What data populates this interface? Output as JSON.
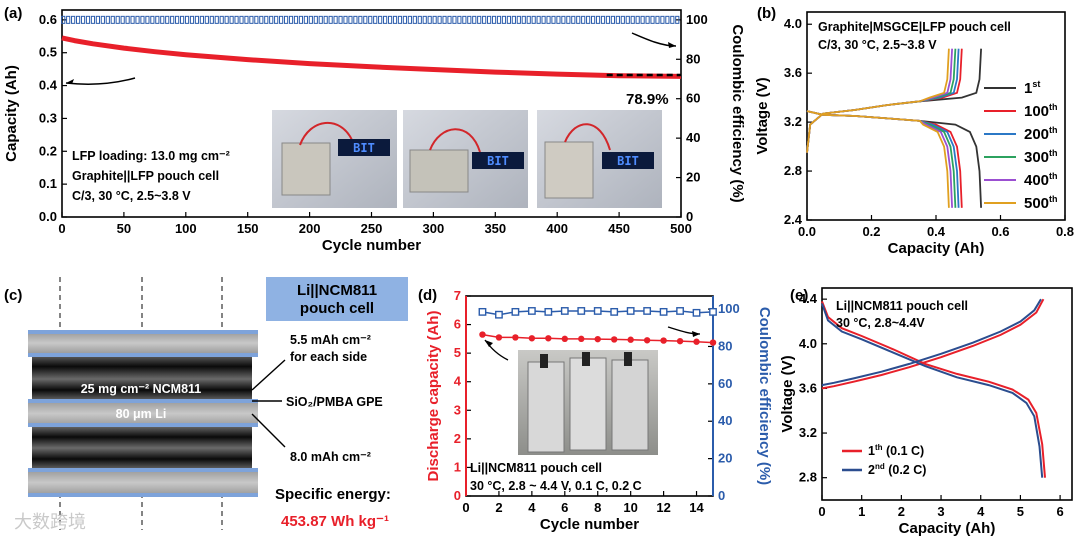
{
  "watermark": "大数跨境",
  "chart_data": [
    {
      "panel": "(a)",
      "type": "line",
      "xlabel": "Cycle number",
      "ylabel": "Capacity (Ah)",
      "y2label": "Coulombic efficiency (%)",
      "xlim": [
        0,
        500
      ],
      "ylim": [
        0.0,
        0.63
      ],
      "y2lim": [
        0,
        105
      ],
      "xticks": [
        "0",
        "50",
        "100",
        "150",
        "200",
        "250",
        "300",
        "350",
        "400",
        "450",
        "500"
      ],
      "yticks": [
        "0.0",
        "0.1",
        "0.2",
        "0.3",
        "0.4",
        "0.5",
        "0.6"
      ],
      "y2ticks": [
        "0",
        "20",
        "40",
        "60",
        "80",
        "100"
      ],
      "series": [
        {
          "role": "capacity",
          "color": "#e8202a",
          "x": [
            0,
            10,
            25,
            50,
            75,
            100,
            150,
            200,
            250,
            300,
            350,
            400,
            450,
            500
          ],
          "y": [
            0.545,
            0.537,
            0.527,
            0.514,
            0.503,
            0.494,
            0.479,
            0.467,
            0.457,
            0.449,
            0.441,
            0.435,
            0.43,
            0.428
          ]
        },
        {
          "role": "coulombic-efficiency",
          "color": "#2b5cab",
          "x": [
            0,
            100,
            200,
            300,
            400,
            500
          ],
          "y": [
            100,
            100,
            100,
            100,
            100,
            100
          ]
        }
      ],
      "annotations": [
        "78.9%",
        "LFP loading: 13.0 mg cm⁻²",
        "Graphite||LFP pouch cell",
        "C/3, 30 °C, 2.5~3.8 V"
      ],
      "photo_text": [
        "BIT",
        "BIT",
        "BIT"
      ]
    },
    {
      "panel": "(b)",
      "type": "line",
      "title": "Graphite|MSGCE|LFP pouch cell",
      "subtitle": "C/3, 30 °C, 2.5~3.8 V",
      "xlabel": "Capacity (Ah)",
      "ylabel": "Voltage (V)",
      "xlim": [
        0.0,
        0.8
      ],
      "ylim": [
        2.4,
        4.1
      ],
      "xticks": [
        "0.0",
        "0.2",
        "0.4",
        "0.6",
        "0.8"
      ],
      "yticks": [
        "2.4",
        "2.8",
        "3.2",
        "3.6",
        "4.0"
      ],
      "series": [
        {
          "name": "1",
          "sup": "st",
          "color": "#333333",
          "cap": 0.54
        },
        {
          "name": "100",
          "sup": "th",
          "color": "#e8202a",
          "cap": 0.48
        },
        {
          "name": "200",
          "sup": "th",
          "color": "#2b78c6",
          "cap": 0.47
        },
        {
          "name": "300",
          "sup": "th",
          "color": "#2ca25f",
          "cap": 0.46
        },
        {
          "name": "400",
          "sup": "th",
          "color": "#9b4fd1",
          "cap": 0.45
        },
        {
          "name": "500",
          "sup": "th",
          "color": "#e0a020",
          "cap": 0.44
        }
      ]
    },
    {
      "panel": "(c)",
      "type": "diagram",
      "labels": {
        "cell": "Li||NCM811 pouch cell",
        "areal": "5.5 mAh cm⁻²",
        "areal2": "for each side",
        "cathode": "25 mg cm⁻² NCM811",
        "anode": "80 μm Li",
        "gpe": "SiO₂/PMBA GPE",
        "li": "8.0 mAh cm⁻²",
        "se_label": "Specific energy:",
        "se_value": "453.87 Wh kg⁻¹"
      }
    },
    {
      "panel": "(d)",
      "type": "scatter",
      "xlabel": "Cycle number",
      "ylabel": "Discharge capacity (Ah)",
      "y2label": "Coulombic efficiency (%)",
      "xlim": [
        0,
        15
      ],
      "ylim": [
        0,
        7
      ],
      "y2lim": [
        0,
        107
      ],
      "xticks": [
        "0",
        "2",
        "4",
        "6",
        "8",
        "10",
        "12",
        "14"
      ],
      "yticks": [
        "0",
        "1",
        "2",
        "3",
        "4",
        "5",
        "6",
        "7"
      ],
      "y2ticks": [
        "0",
        "20",
        "40",
        "60",
        "80",
        "100"
      ],
      "series": [
        {
          "role": "discharge-capacity",
          "color": "#e8202a",
          "x": [
            1,
            2,
            3,
            4,
            5,
            6,
            7,
            8,
            9,
            10,
            11,
            12,
            13,
            14,
            15
          ],
          "y": [
            5.65,
            5.55,
            5.55,
            5.52,
            5.52,
            5.5,
            5.5,
            5.49,
            5.48,
            5.47,
            5.45,
            5.44,
            5.42,
            5.4,
            5.37
          ]
        },
        {
          "role": "coulombic-efficiency",
          "color": "#2b5cab",
          "x": [
            1,
            2,
            3,
            4,
            5,
            6,
            7,
            8,
            9,
            10,
            11,
            12,
            13,
            14,
            15
          ],
          "y": [
            98.5,
            97.0,
            98.5,
            99.0,
            98.5,
            99.0,
            99.0,
            99.0,
            98.5,
            99.0,
            99.0,
            98.5,
            99.0,
            98.0,
            98.5
          ]
        }
      ],
      "annotations": [
        "Li||NCM811 pouch cell",
        "30 °C, 2.8 ~ 4.4 V, 0.1 C, 0.2 C"
      ]
    },
    {
      "panel": "(e)",
      "type": "line",
      "title": "Li||NCM811 pouch cell",
      "subtitle": "30 °C, 2.8~4.4V",
      "xlabel": "Capacity (Ah)",
      "ylabel": "Voltage (V)",
      "xlim": [
        0,
        6.3
      ],
      "ylim": [
        2.6,
        4.5
      ],
      "xticks": [
        "0",
        "1",
        "2",
        "3",
        "4",
        "5",
        "6"
      ],
      "yticks": [
        "2.8",
        "3.2",
        "3.6",
        "4.0",
        "4.4"
      ],
      "series": [
        {
          "name": "1",
          "sup": "th",
          "tail": " (0.1 C)",
          "color": "#e8202a",
          "charge_x": [
            0.0,
            0.3,
            0.8,
            1.5,
            2.2,
            3.0,
            3.8,
            4.5,
            5.0,
            5.4,
            5.58
          ],
          "charge_y": [
            3.6,
            3.62,
            3.66,
            3.72,
            3.79,
            3.88,
            3.98,
            4.08,
            4.17,
            4.28,
            4.4
          ],
          "discharge_x": [
            0.0,
            0.15,
            0.5,
            1.0,
            1.8,
            2.6,
            3.4,
            4.2,
            4.8,
            5.2,
            5.4,
            5.55,
            5.62
          ],
          "discharge_y": [
            4.38,
            4.24,
            4.14,
            4.07,
            3.95,
            3.82,
            3.73,
            3.66,
            3.59,
            3.5,
            3.38,
            3.1,
            2.8
          ]
        },
        {
          "name": "2",
          "sup": "nd",
          "tail": " (0.2 C)",
          "color": "#2b4d8f",
          "charge_x": [
            0.0,
            0.3,
            0.8,
            1.5,
            2.2,
            3.0,
            3.8,
            4.5,
            5.0,
            5.35,
            5.52
          ],
          "charge_y": [
            3.63,
            3.65,
            3.69,
            3.75,
            3.82,
            3.91,
            4.01,
            4.11,
            4.2,
            4.3,
            4.4
          ],
          "discharge_x": [
            0.0,
            0.15,
            0.5,
            1.0,
            1.8,
            2.6,
            3.4,
            4.2,
            4.8,
            5.15,
            5.35,
            5.48,
            5.55
          ],
          "discharge_y": [
            4.36,
            4.21,
            4.11,
            4.04,
            3.92,
            3.8,
            3.7,
            3.63,
            3.56,
            3.47,
            3.35,
            3.08,
            2.8
          ]
        }
      ]
    }
  ]
}
